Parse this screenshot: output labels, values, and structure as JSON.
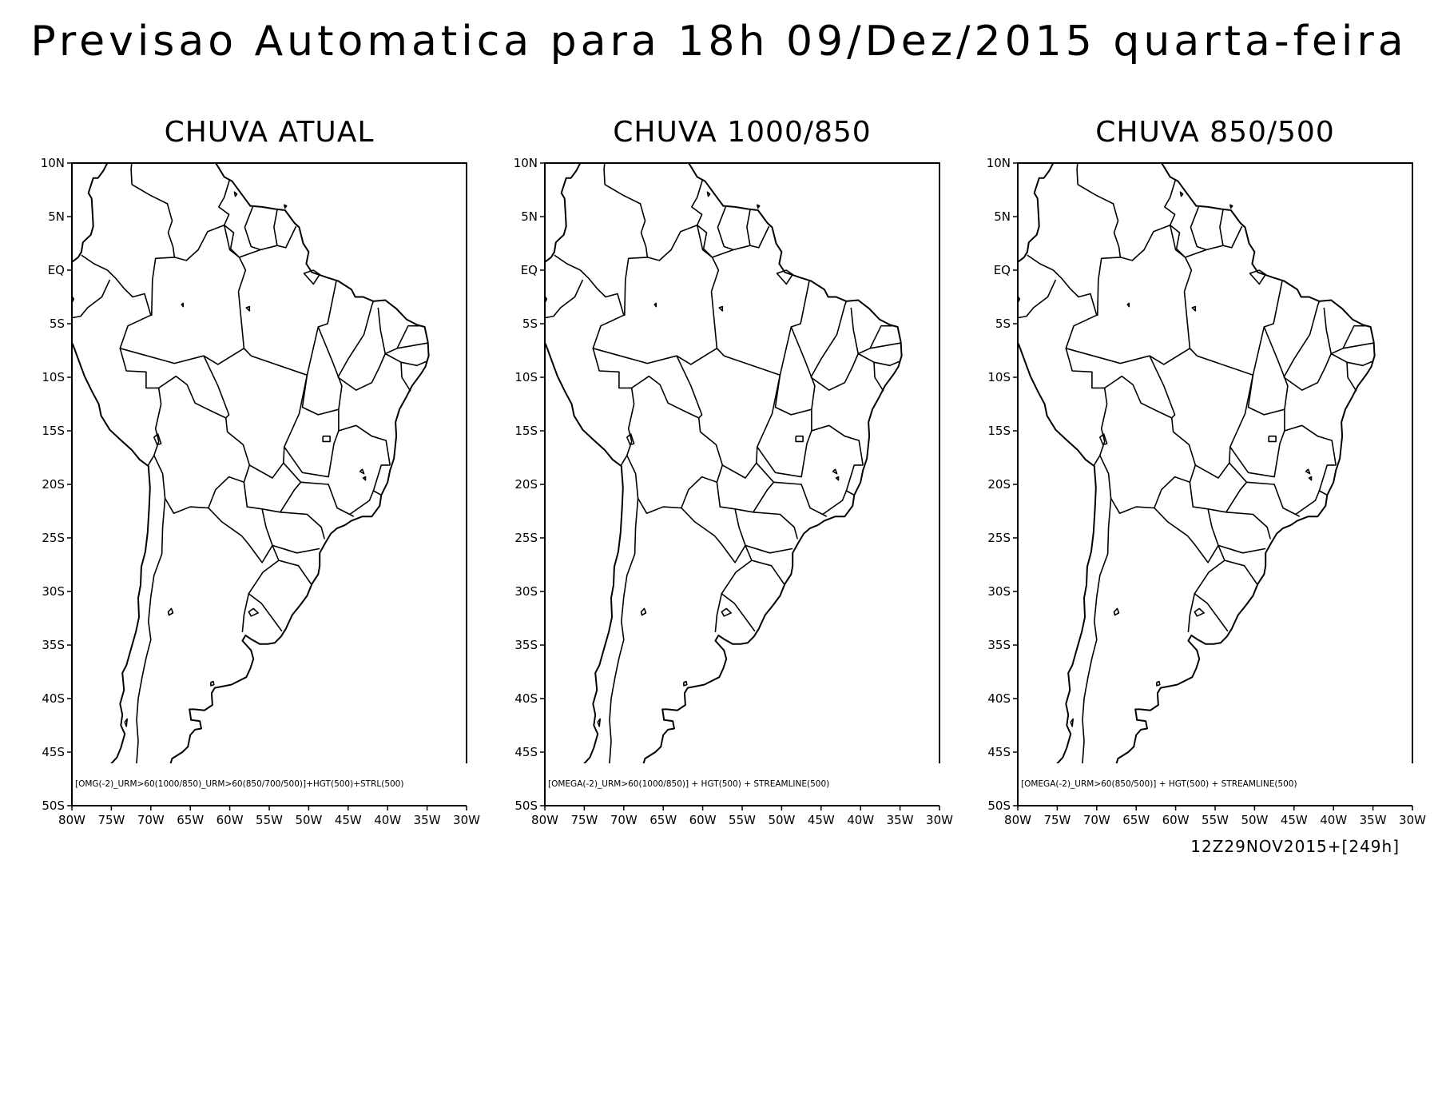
{
  "header": {
    "title": "Previsao Automatica para 18h 09/Dez/2015 quarta-feira"
  },
  "axes": {
    "lat_labels": [
      "10N",
      "5N",
      "EQ",
      "5S",
      "10S",
      "15S",
      "20S",
      "25S",
      "30S",
      "35S",
      "40S",
      "45S",
      "50S"
    ],
    "lon_labels": [
      "80W",
      "75W",
      "70W",
      "65W",
      "60W",
      "55W",
      "50W",
      "45W",
      "40W",
      "35W",
      "30W"
    ],
    "lat_range": [
      -50,
      10
    ],
    "lon_range": [
      -80,
      -30
    ]
  },
  "panels": [
    {
      "title": "CHUVA ATUAL",
      "legend": "[OMG(-2)_URM>60(1000/850)_URM>60(850/700/500)]+HGT(500)+STRL(500)"
    },
    {
      "title": "CHUVA 1000/850",
      "legend": "[OMEGA(-2)_URM>60(1000/850)] + HGT(500) + STREAMLINE(500)"
    },
    {
      "title": "CHUVA 850/500",
      "legend": "[OMEGA(-2)_URM>60(850/500)] + HGT(500) + STREAMLINE(500)"
    }
  ],
  "footer": {
    "run_info": "12Z29NOV2015+[249h]"
  }
}
